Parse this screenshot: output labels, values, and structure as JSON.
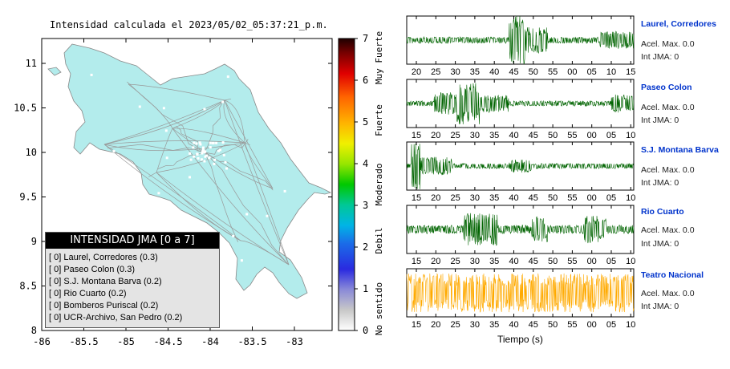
{
  "map": {
    "title": "Intensidad calculada el 2023/05/02_05:37:21_p.m.",
    "y_ticks": [
      "11",
      "10.5",
      "10",
      "9.5",
      "9",
      "8.5",
      "8"
    ],
    "x_ticks": [
      "-86",
      "-85.5",
      "-85",
      "-84.5",
      "-84",
      "-83.5",
      "-83"
    ],
    "land_color": "#b3ecec",
    "legend": {
      "header": "INTENSIDAD JMA [0 a 7]",
      "items": [
        "[ 0]  Laurel, Corredores (0.3)",
        "[ 0]  Paseo Colon (0.3)",
        "[ 0]  S.J. Montana Barva (0.2)",
        "[ 0]  Rio Cuarto (0.2)",
        "[ 0]  Bomberos Puriscal (0.2)",
        "[ 0]  UCR-Archivo, San Pedro (0.2)"
      ]
    }
  },
  "scale": {
    "ticks": [
      "0",
      "1",
      "2",
      "3",
      "4",
      "5",
      "6",
      "7"
    ],
    "labels": [
      "No sentido",
      "Debil",
      "Moderado",
      "Fuerte",
      "Muy Fuerte"
    ]
  },
  "traces": {
    "xlabel": "Tiempo (s)",
    "stations": [
      {
        "name": "Laurel, Corredores",
        "acel": "Acel. Max. 0.0",
        "int": "Int JMA: 0",
        "color": "#006400",
        "ticks": [
          "20",
          "25",
          "30",
          "35",
          "40",
          "45",
          "50",
          "55",
          "00",
          "05",
          "10",
          "15"
        ]
      },
      {
        "name": "Paseo Colon",
        "acel": "Acel. Max. 0.0",
        "int": "Int JMA: 0",
        "color": "#006400",
        "ticks": [
          "15",
          "20",
          "25",
          "30",
          "35",
          "40",
          "45",
          "50",
          "55",
          "00",
          "05",
          "10"
        ]
      },
      {
        "name": "S.J. Montana Barva",
        "acel": "Acel. Max. 0.0",
        "int": "Int JMA: 0",
        "color": "#006400",
        "ticks": [
          "15",
          "20",
          "25",
          "30",
          "35",
          "40",
          "45",
          "50",
          "55",
          "00",
          "05",
          "10"
        ]
      },
      {
        "name": "Rio Cuarto",
        "acel": "Acel. Max. 0.0",
        "int": "Int JMA: 0",
        "color": "#006400",
        "ticks": [
          "15",
          "20",
          "25",
          "30",
          "35",
          "40",
          "45",
          "50",
          "55",
          "00",
          "05",
          "10"
        ]
      },
      {
        "name": "Teatro Nacional",
        "acel": "Acel. Max. 0.0",
        "int": "Int JMA: 0",
        "color": "#ffaa00",
        "ticks": [
          "15",
          "20",
          "25",
          "30",
          "35",
          "40",
          "45",
          "50",
          "55",
          "00",
          "05",
          "10"
        ]
      }
    ]
  }
}
